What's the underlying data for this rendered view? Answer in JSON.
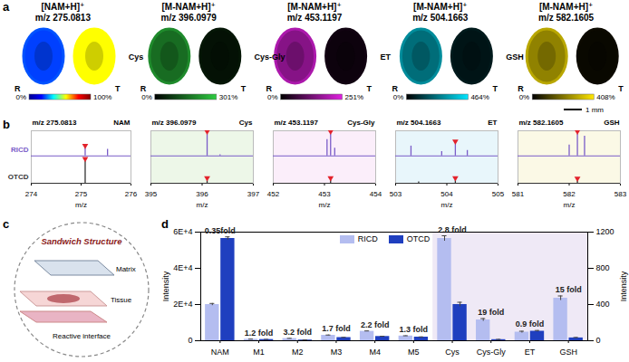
{
  "chart_data": [
    {
      "panel": "a",
      "type": "image",
      "sections": [
        "R",
        "T"
      ],
      "scale_bar": "1 mm",
      "images": [
        {
          "title": "[NAM+H]⁺",
          "subtitle": "m/z 275.0813",
          "colors": [
            "#00008f",
            "#0000ff",
            "#00ffff",
            "#ffff00",
            "#ff0000",
            "#800000"
          ],
          "colorbar": {
            "range": [
              0,
              100
            ],
            "ticks": [
              {
                "value": 0,
                "label": "0%"
              },
              {
                "value": 100,
                "label": "100%"
              }
            ]
          },
          "intensity": [
            25,
            60
          ]
        },
        {
          "title": "[M-NAM+H]⁺",
          "subtitle": "m/z 396.0979",
          "label": "Cys",
          "colors": [
            "#000000",
            "#2ecc40"
          ],
          "colorbar": {
            "range": [
              0,
              301
            ],
            "ticks": [
              {
                "value": 0,
                "label": "0%"
              },
              {
                "value": 301,
                "label": "301%"
              }
            ]
          },
          "intensity": [
            160,
            25
          ]
        },
        {
          "title": "[M-NAM+H]⁺",
          "subtitle": "m/z 453.1197",
          "label": "Cys-Gly",
          "colors": [
            "#000000",
            "#e020e0"
          ],
          "colorbar": {
            "range": [
              0,
              251
            ],
            "ticks": [
              {
                "value": 0,
                "label": "0%"
              },
              {
                "value": 251,
                "label": "251%"
              }
            ]
          },
          "intensity": [
            150,
            15
          ]
        },
        {
          "title": "[M-NAM+H]⁺",
          "subtitle": "m/z 504.1663",
          "label": "ET",
          "colors": [
            "#000000",
            "#00e5ff"
          ],
          "colorbar": {
            "range": [
              0,
              464
            ],
            "ticks": [
              {
                "value": 0,
                "label": "0%"
              },
              {
                "value": 464,
                "label": "464%"
              }
            ]
          },
          "intensity": [
            220,
            40
          ]
        },
        {
          "title": "[M-NAM+H]⁺",
          "subtitle": "m/z 582.1605",
          "label": "GSH",
          "colors": [
            "#000000",
            "#ffe600"
          ],
          "colorbar": {
            "range": [
              0,
              408
            ],
            "ticks": [
              {
                "value": 0,
                "label": "0%"
              },
              {
                "value": 408,
                "label": "408%"
              }
            ]
          },
          "intensity": [
            230,
            15
          ]
        }
      ]
    },
    {
      "panel": "b",
      "type": "spectrum",
      "tick_labels": "x",
      "marker": "triangle",
      "panels": [
        {
          "title": "NAM",
          "subtitle": "m/z 275.0813",
          "target": 275.0813,
          "color": "#ffffff",
          "xlabel": "m/z",
          "xlim": [
            274,
            276
          ],
          "xticks": [
            274,
            275,
            276
          ],
          "ylim": [
            0,
            1
          ],
          "series": [
            {
              "name": "RICD",
              "color": "#7a5cc8",
              "x": [
                275.0813,
                275.53
              ],
              "values": [
                0.35,
                0.3
              ]
            },
            {
              "name": "OTCD",
              "color": "#333333",
              "x": [
                275.0813
              ],
              "values": [
                1.0
              ]
            }
          ]
        },
        {
          "title": "Cys",
          "subtitle": "m/z 396.0979",
          "target": 396.0979,
          "color": "#edf7e8",
          "xlabel": "m/z",
          "xlim": [
            395,
            397
          ],
          "xticks": [
            395,
            396,
            397
          ],
          "ylim": [
            0,
            1
          ],
          "series": [
            {
              "name": "RICD",
              "color": "#7a5cc8",
              "x": [
                396.0979,
                396.35
              ],
              "values": [
                1.0,
                0.05
              ]
            },
            {
              "name": "OTCD",
              "color": "#333333",
              "x": [
                396.0979
              ],
              "values": [
                0.12
              ]
            }
          ]
        },
        {
          "title": "Cys-Gly",
          "subtitle": "m/z 453.1197",
          "target": 453.1197,
          "color": "#fbeefa",
          "xlabel": "m/z",
          "xlim": [
            452,
            454
          ],
          "xticks": [
            452,
            453,
            454
          ],
          "ylim": [
            0,
            1
          ],
          "series": [
            {
              "name": "RICD",
              "color": "#7a5cc8",
              "x": [
                453.05,
                453.1197,
                453.2
              ],
              "values": [
                0.75,
                1.0,
                0.35
              ]
            },
            {
              "name": "OTCD",
              "color": "#333333",
              "x": [
                453.1197
              ],
              "values": [
                0.12
              ]
            }
          ]
        },
        {
          "title": "ET",
          "subtitle": "m/z 504.1663",
          "target": 504.1663,
          "color": "#e8f6fb",
          "xlabel": "m/z",
          "xlim": [
            503,
            505
          ],
          "xticks": [
            503,
            504,
            505
          ],
          "ylim": [
            0,
            1
          ],
          "series": [
            {
              "name": "RICD",
              "color": "#7a5cc8",
              "x": [
                503.3,
                503.9,
                504.1663,
                504.4
              ],
              "values": [
                0.45,
                0.2,
                0.55,
                0.25
              ]
            },
            {
              "name": "OTCD",
              "color": "#333333",
              "x": [
                503.45,
                504.1663
              ],
              "values": [
                0.06,
                0.12
              ]
            }
          ]
        },
        {
          "title": "GSH",
          "subtitle": "m/z 582.1605",
          "target": 582.1605,
          "color": "#fbf9e6",
          "xlabel": "m/z",
          "xlim": [
            581,
            583
          ],
          "xticks": [
            581,
            582,
            583
          ],
          "ylim": [
            0,
            1
          ],
          "series": [
            {
              "name": "RICD",
              "color": "#7a5cc8",
              "x": [
                582.0,
                582.1605,
                582.3
              ],
              "values": [
                0.5,
                1.0,
                0.9
              ]
            },
            {
              "name": "OTCD",
              "color": "#333333",
              "x": [
                582.1605
              ],
              "values": [
                0.1
              ]
            }
          ]
        }
      ]
    },
    {
      "panel": "c",
      "type": "diagram",
      "title": "Sandwich Structure",
      "layers": [
        "Matrix",
        "Tissue",
        "Reactive interface"
      ]
    },
    {
      "panel": "d",
      "type": "bar",
      "legend": "top",
      "categories": [
        "NAM",
        "M1",
        "M2",
        "M3",
        "M4",
        "M5",
        "Cys",
        "Cys-Gly",
        "ET",
        "GSH"
      ],
      "fold_labels": [
        "0.35fold",
        "1.2 fold",
        "3.2 fold",
        "1.7 fold",
        "2.2 fold",
        "1.3 fold",
        "2.8 fold",
        "19 fold",
        "0.9 fold",
        "15 fold"
      ],
      "ylabel": "Intensity",
      "ylim": [
        0,
        60000
      ],
      "yticks": [
        0,
        {
          "value": 20000,
          "label": "2E+4"
        },
        {
          "value": 40000,
          "label": "4E+4"
        },
        {
          "value": 60000,
          "label": "6E+4"
        }
      ],
      "y2label": "Intensity",
      "y2lim": [
        0,
        1200
      ],
      "y2ticks": [
        0,
        400,
        800,
        1200
      ],
      "series": [
        {
          "name": "RICD",
          "color": "#b4bdf0",
          "values": [
            20000,
            800,
            1200,
            3000,
            5200,
            2600,
            null,
            null,
            null,
            null
          ],
          "errors": [
            600,
            100,
            100,
            150,
            200,
            150,
            null,
            null,
            null,
            null
          ]
        },
        {
          "name": "OTCD",
          "color": "#1f3fbf",
          "values": [
            56500,
            670,
            380,
            1750,
            2350,
            2000,
            null,
            null,
            null,
            null
          ],
          "errors": [
            900,
            80,
            60,
            120,
            150,
            120,
            null,
            null,
            null,
            null
          ]
        },
        {
          "name": "RICD",
          "color": "#b4bdf0",
          "axis": "y2",
          "values": [
            null,
            null,
            null,
            null,
            null,
            null,
            1130,
            230,
            95,
            470
          ],
          "errors": [
            null,
            null,
            null,
            null,
            null,
            null,
            30,
            15,
            10,
            25
          ]
        },
        {
          "name": "OTCD",
          "color": "#1f3fbf",
          "axis": "y2",
          "values": [
            null,
            null,
            null,
            null,
            null,
            null,
            400,
            12,
            105,
            31
          ],
          "errors": [
            null,
            null,
            null,
            null,
            null,
            null,
            25,
            3,
            8,
            5
          ]
        }
      ]
    }
  ]
}
